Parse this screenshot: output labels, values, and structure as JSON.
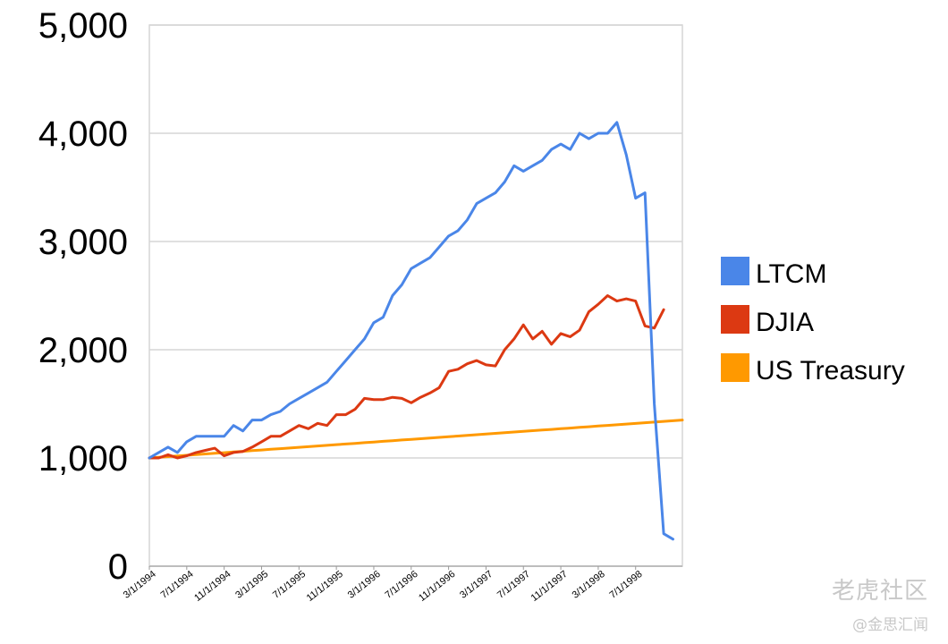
{
  "chart_data": {
    "type": "line",
    "title": "",
    "xlabel": "",
    "ylabel": "",
    "ylim": [
      0,
      5000
    ],
    "y_ticks": [
      "0",
      "1,000",
      "2,000",
      "3,000",
      "4,000",
      "5,000"
    ],
    "x_tick_labels": [
      "3/1/1994",
      "7/1/1994",
      "11/1/1994",
      "3/1/1995",
      "7/1/1995",
      "11/1/1995",
      "3/1/1996",
      "7/1/1996",
      "11/1/1996",
      "3/1/1997",
      "7/1/1997",
      "11/1/1997",
      "3/1/1998",
      "7/1/1998"
    ],
    "months": 58,
    "grid": true,
    "legend_position": "right",
    "series": [
      {
        "name": "LTCM",
        "color": "#4a86e8",
        "values": [
          1000,
          1050,
          1100,
          1050,
          1150,
          1200,
          1200,
          1200,
          1200,
          1300,
          1250,
          1350,
          1350,
          1400,
          1430,
          1500,
          1550,
          1600,
          1650,
          1700,
          1800,
          1900,
          2000,
          2100,
          2250,
          2300,
          2500,
          2600,
          2750,
          2800,
          2850,
          2950,
          3050,
          3100,
          3200,
          3350,
          3400,
          3450,
          3550,
          3700,
          3650,
          3700,
          3750,
          3850,
          3900,
          3850,
          4000,
          3950,
          4000,
          4000,
          4100,
          3800,
          3400,
          3450,
          1500,
          300,
          250
        ]
      },
      {
        "name": "DJIA",
        "color": "#dc3912",
        "values": [
          1000,
          1000,
          1030,
          1000,
          1020,
          1050,
          1070,
          1090,
          1020,
          1050,
          1060,
          1100,
          1150,
          1200,
          1200,
          1250,
          1300,
          1270,
          1320,
          1300,
          1400,
          1400,
          1450,
          1550,
          1540,
          1540,
          1560,
          1550,
          1510,
          1560,
          1600,
          1650,
          1800,
          1820,
          1870,
          1900,
          1860,
          1850,
          2000,
          2100,
          2230,
          2100,
          2170,
          2050,
          2150,
          2120,
          2180,
          2350,
          2420,
          2500,
          2450,
          2470,
          2450,
          2220,
          2200,
          2370
        ]
      },
      {
        "name": "US Treasury",
        "color": "#ff9900",
        "start": 1000,
        "end": 1350
      }
    ]
  },
  "watermark": {
    "line1": "老虎社区",
    "line2": "@金思汇闻"
  }
}
